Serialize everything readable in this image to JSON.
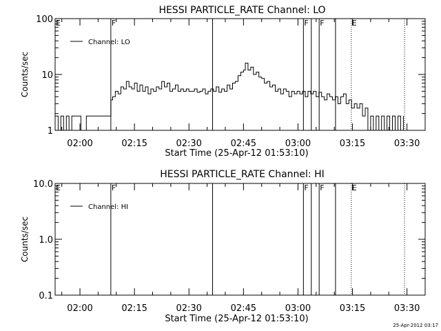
{
  "footer": {
    "timestamp": "25-Apr-2012 03:17"
  },
  "chart_data": [
    {
      "type": "line",
      "title": "HESSI PARTICLE_RATE Channel: LO",
      "xlabel": "Start Time (25-Apr-12 01:53:10)",
      "ylabel": "Counts/sec",
      "y_scale": "log",
      "ylim": [
        1,
        100
      ],
      "yticks": [
        1,
        10,
        100
      ],
      "ytick_labels": [
        "1",
        "10",
        "100"
      ],
      "xlim": [
        "01:53:10",
        "03:35:00"
      ],
      "xticks": [
        "02:00",
        "02:15",
        "02:30",
        "02:45",
        "03:00",
        "03:15",
        "03:30"
      ],
      "legend": {
        "position": "top-left",
        "entries": [
          "Channel: LO"
        ]
      },
      "markers": [
        {
          "time": "02:08:30",
          "label": "F",
          "style": "solid"
        },
        {
          "time": "02:36:30",
          "label": "",
          "style": "solid"
        },
        {
          "time": "03:01:30",
          "label": "F",
          "style": "solid"
        },
        {
          "time": "03:03:40",
          "label": "",
          "style": "solid"
        },
        {
          "time": "03:05:50",
          "label": "F",
          "style": "solid"
        },
        {
          "time": "03:10:20",
          "label": "",
          "style": "solid"
        },
        {
          "time": "03:14:40",
          "label": "E",
          "style": "dotted"
        },
        {
          "time": "03:29:20",
          "label": "",
          "style": "dotted"
        }
      ],
      "corner_labels": [
        {
          "time": "01:53:10",
          "label": "E"
        }
      ],
      "series": [
        {
          "name": "Channel: LO",
          "points": [
            [
              "01:53:10",
              1.8
            ],
            [
              "01:54:00",
              1.0
            ],
            [
              "01:54:45",
              1.8
            ],
            [
              "01:55:30",
              1.0
            ],
            [
              "01:56:15",
              1.8
            ],
            [
              "01:57:00",
              1.0
            ],
            [
              "01:57:45",
              1.8
            ],
            [
              "01:59:30",
              1.8
            ],
            [
              "02:00:15",
              1.0
            ],
            [
              "02:01:00",
              1.0
            ],
            [
              "02:01:45",
              1.8
            ],
            [
              "02:04:30",
              1.8
            ],
            [
              "02:05:15",
              1.8
            ],
            [
              "02:08:00",
              1.8
            ],
            [
              "02:08:30",
              3.5
            ],
            [
              "02:09:00",
              4.0
            ],
            [
              "02:09:45",
              5.0
            ],
            [
              "02:10:30",
              4.5
            ],
            [
              "02:11:15",
              6.0
            ],
            [
              "02:12:00",
              5.5
            ],
            [
              "02:12:45",
              7.5
            ],
            [
              "02:13:30",
              6.0
            ],
            [
              "02:14:15",
              5.5
            ],
            [
              "02:15:00",
              7.0
            ],
            [
              "02:15:45",
              5.0
            ],
            [
              "02:16:30",
              6.5
            ],
            [
              "02:17:15",
              5.0
            ],
            [
              "02:18:00",
              6.0
            ],
            [
              "02:18:45",
              4.5
            ],
            [
              "02:19:30",
              5.5
            ],
            [
              "02:20:15",
              5.0
            ],
            [
              "02:21:00",
              6.0
            ],
            [
              "02:21:45",
              5.5
            ],
            [
              "02:22:30",
              7.5
            ],
            [
              "02:23:15",
              6.0
            ],
            [
              "02:24:00",
              7.0
            ],
            [
              "02:24:45",
              5.0
            ],
            [
              "02:25:30",
              5.5
            ],
            [
              "02:26:15",
              6.5
            ],
            [
              "02:27:00",
              5.0
            ],
            [
              "02:27:45",
              5.5
            ],
            [
              "02:28:30",
              5.0
            ],
            [
              "02:29:15",
              5.5
            ],
            [
              "02:30:00",
              5.0
            ],
            [
              "02:30:45",
              5.0
            ],
            [
              "02:31:30",
              5.5
            ],
            [
              "02:32:15",
              4.8
            ],
            [
              "02:33:00",
              5.0
            ],
            [
              "02:33:45",
              5.5
            ],
            [
              "02:34:30",
              4.5
            ],
            [
              "02:35:15",
              5.0
            ],
            [
              "02:36:00",
              5.5
            ],
            [
              "02:36:45",
              5.0
            ],
            [
              "02:37:30",
              6.0
            ],
            [
              "02:38:15",
              4.8
            ],
            [
              "02:39:00",
              5.5
            ],
            [
              "02:39:45",
              5.0
            ],
            [
              "02:40:30",
              6.5
            ],
            [
              "02:41:15",
              5.5
            ],
            [
              "02:42:00",
              7.0
            ],
            [
              "02:42:45",
              7.5
            ],
            [
              "02:43:30",
              9.5
            ],
            [
              "02:44:15",
              11.0
            ],
            [
              "02:45:00",
              12.0
            ],
            [
              "02:45:30",
              16.0
            ],
            [
              "02:46:15",
              12.0
            ],
            [
              "02:47:00",
              13.5
            ],
            [
              "02:47:45",
              10.0
            ],
            [
              "02:48:30",
              11.0
            ],
            [
              "02:49:15",
              9.0
            ],
            [
              "02:50:00",
              8.5
            ],
            [
              "02:50:45",
              7.0
            ],
            [
              "02:51:30",
              7.5
            ],
            [
              "02:52:15",
              6.0
            ],
            [
              "02:53:00",
              6.5
            ],
            [
              "02:53:45",
              5.0
            ],
            [
              "02:54:30",
              5.5
            ],
            [
              "02:55:15",
              4.5
            ],
            [
              "02:56:00",
              5.5
            ],
            [
              "02:56:45",
              5.0
            ],
            [
              "02:57:30",
              4.0
            ],
            [
              "02:58:15",
              5.0
            ],
            [
              "02:59:00",
              4.5
            ],
            [
              "02:59:45",
              5.0
            ],
            [
              "03:00:30",
              4.5
            ],
            [
              "03:01:15",
              5.0
            ],
            [
              "03:02:00",
              4.0
            ],
            [
              "03:02:45",
              5.0
            ],
            [
              "03:03:30",
              4.5
            ],
            [
              "03:04:15",
              5.0
            ],
            [
              "03:05:00",
              4.0
            ],
            [
              "03:05:45",
              4.8
            ],
            [
              "03:06:30",
              4.0
            ],
            [
              "03:07:15",
              3.5
            ],
            [
              "03:08:00",
              4.5
            ],
            [
              "03:08:45",
              4.0
            ],
            [
              "03:09:30",
              3.5
            ],
            [
              "03:10:15",
              4.0
            ],
            [
              "03:11:00",
              3.0
            ],
            [
              "03:11:45",
              4.0
            ],
            [
              "03:12:30",
              4.5
            ],
            [
              "03:13:15",
              3.0
            ],
            [
              "03:14:00",
              3.5
            ],
            [
              "03:14:45",
              2.5
            ],
            [
              "03:15:30",
              3.0
            ],
            [
              "03:16:15",
              2.5
            ],
            [
              "03:17:00",
              3.0
            ],
            [
              "03:17:45",
              1.8
            ],
            [
              "03:18:30",
              2.5
            ],
            [
              "03:19:15",
              1.0
            ],
            [
              "03:20:00",
              1.8
            ],
            [
              "03:20:45",
              1.0
            ],
            [
              "03:21:30",
              1.8
            ],
            [
              "03:22:15",
              1.0
            ],
            [
              "03:23:00",
              1.8
            ],
            [
              "03:23:45",
              1.0
            ],
            [
              "03:24:30",
              1.8
            ],
            [
              "03:25:15",
              1.0
            ],
            [
              "03:26:00",
              1.8
            ],
            [
              "03:26:45",
              1.0
            ],
            [
              "03:27:30",
              1.8
            ],
            [
              "03:28:15",
              1.0
            ],
            [
              "03:29:00",
              1.8
            ]
          ]
        }
      ]
    },
    {
      "type": "line",
      "title": "HESSI PARTICLE_RATE Channel: HI",
      "xlabel": "Start Time (25-Apr-12 01:53:10)",
      "ylabel": "Counts/sec",
      "y_scale": "log",
      "ylim": [
        0.1,
        10.0
      ],
      "yticks": [
        0.1,
        1.0,
        10.0
      ],
      "ytick_labels": [
        "0.1",
        "1.0",
        "10.0"
      ],
      "xlim": [
        "01:53:10",
        "03:35:00"
      ],
      "xticks": [
        "02:00",
        "02:15",
        "02:30",
        "02:45",
        "03:00",
        "03:15",
        "03:30"
      ],
      "legend": {
        "position": "top-left",
        "entries": [
          "Channel: HI"
        ]
      },
      "markers": [
        {
          "time": "02:08:30",
          "label": "F",
          "style": "solid"
        },
        {
          "time": "02:36:30",
          "label": "",
          "style": "solid"
        },
        {
          "time": "03:01:30",
          "label": "F",
          "style": "solid"
        },
        {
          "time": "03:03:40",
          "label": "",
          "style": "solid"
        },
        {
          "time": "03:05:50",
          "label": "F",
          "style": "solid"
        },
        {
          "time": "03:10:20",
          "label": "",
          "style": "solid"
        },
        {
          "time": "03:14:40",
          "label": "E",
          "style": "dotted"
        },
        {
          "time": "03:29:20",
          "label": "",
          "style": "dotted"
        }
      ],
      "corner_labels": [
        {
          "time": "01:53:10",
          "label": "E"
        }
      ],
      "series": [
        {
          "name": "Channel: HI",
          "points": []
        }
      ]
    }
  ]
}
